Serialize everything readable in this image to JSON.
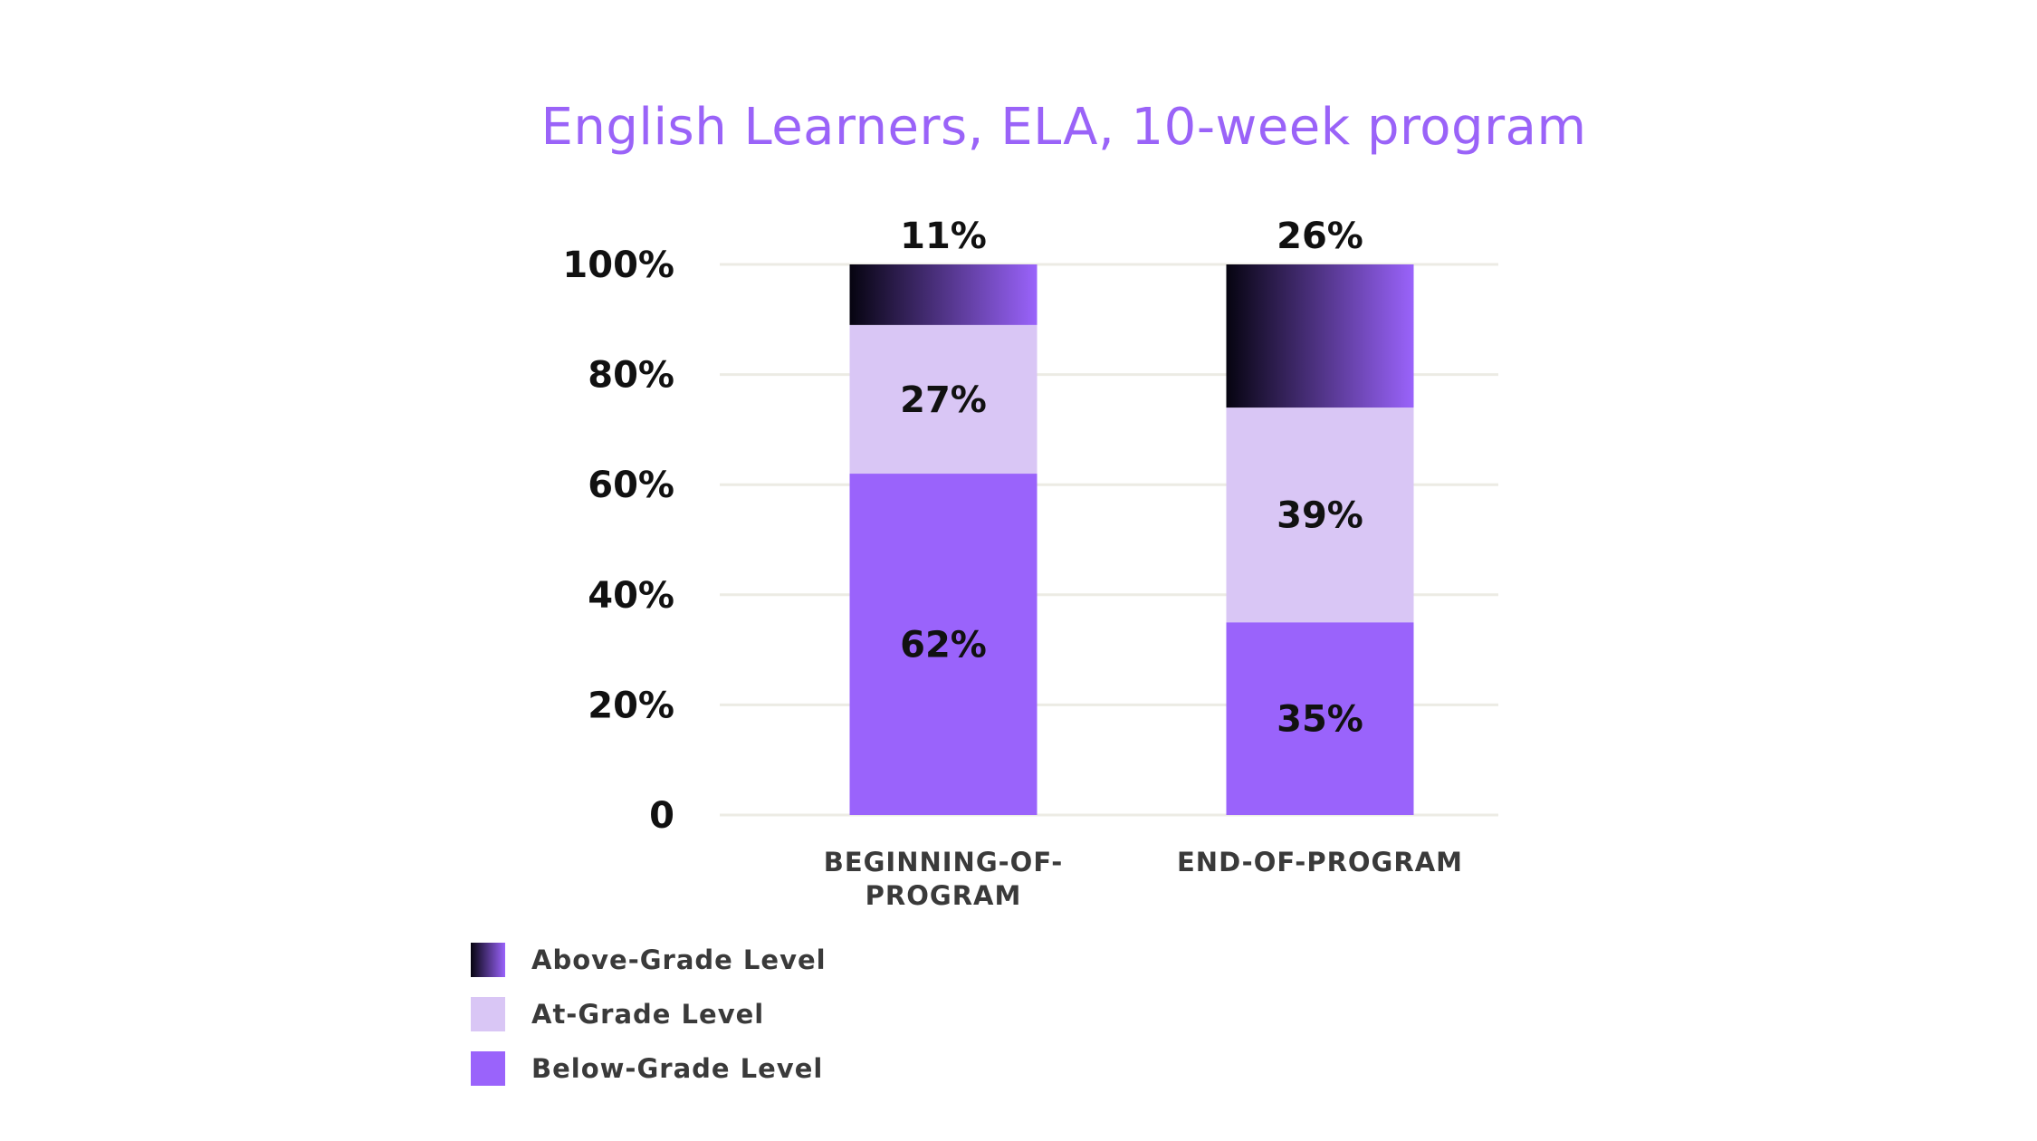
{
  "chart_data": {
    "type": "bar",
    "stacked": true,
    "title": "English Learners, ELA, 10-week program",
    "categories": [
      "BEGINNING-OF-PROGRAM",
      "END-OF-PROGRAM"
    ],
    "category_label_lines": [
      [
        "BEGINNING-OF-",
        "PROGRAM"
      ],
      [
        "END-OF-PROGRAM"
      ]
    ],
    "series": [
      {
        "name": "Below-Grade Level",
        "values": [
          62,
          35
        ],
        "labels": [
          "62%",
          "35%"
        ],
        "color": "#9a63fb"
      },
      {
        "name": "At-Grade Level",
        "values": [
          27,
          39
        ],
        "labels": [
          "27%",
          "39%"
        ],
        "color": "#d9c6f5"
      },
      {
        "name": "Above-Grade Level",
        "values": [
          11,
          26
        ],
        "labels": [
          "11%",
          "26%"
        ],
        "color_gradient": [
          "#060410",
          "#9a63fb"
        ]
      }
    ],
    "y_ticks": [
      0,
      20,
      40,
      60,
      80,
      100
    ],
    "y_tick_labels": [
      "0",
      "20%",
      "40%",
      "60%",
      "80%",
      "100%"
    ],
    "ylim": [
      0,
      100
    ],
    "grid": true,
    "legend_position": "bottom-left"
  }
}
